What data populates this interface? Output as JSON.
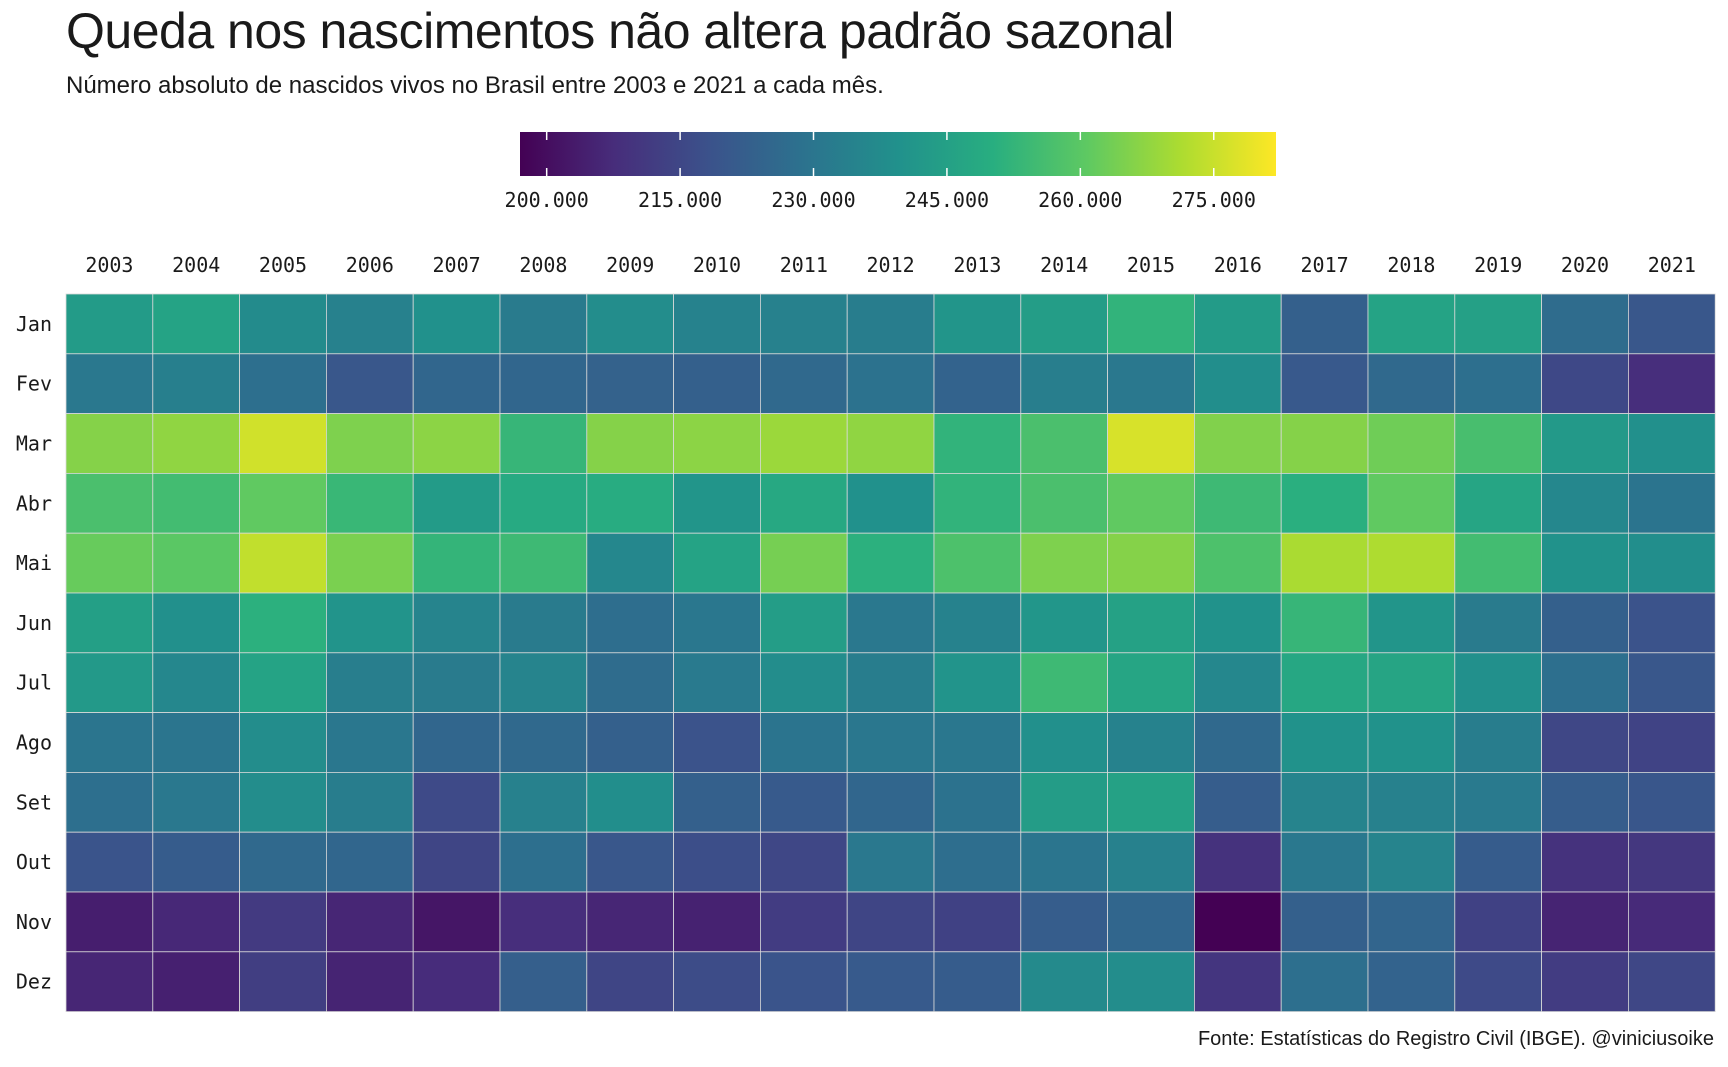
{
  "chart_data": {
    "type": "heatmap",
    "title": "Queda nos nascimentos não altera padrão sazonal",
    "subtitle": "Número absoluto de nascidos vivos no Brasil entre 2003 e 2021 a cada mês.",
    "caption": "Fonte: Estatísticas do Registro Civil (IBGE). @viniciusoike",
    "colorscale": "viridis",
    "legend": {
      "position": "top",
      "range": [
        197000,
        282000
      ],
      "tick_values": [
        200000,
        215000,
        230000,
        245000,
        260000,
        275000
      ],
      "tick_labels": [
        "200.000",
        "215.000",
        "230.000",
        "245.000",
        "260.000",
        "275.000"
      ]
    },
    "grid": true,
    "x": [
      "2003",
      "2004",
      "2005",
      "2006",
      "2007",
      "2008",
      "2009",
      "2010",
      "2011",
      "2012",
      "2013",
      "2014",
      "2015",
      "2016",
      "2017",
      "2018",
      "2019",
      "2020",
      "2021"
    ],
    "y": [
      "Jan",
      "Fev",
      "Mar",
      "Abr",
      "Mai",
      "Jun",
      "Jul",
      "Ago",
      "Set",
      "Out",
      "Nov",
      "Dez"
    ],
    "values": [
      [
        243000,
        246000,
        237500,
        234000,
        239500,
        232000,
        238000,
        234500,
        234000,
        232500,
        241000,
        244000,
        252000,
        243000,
        223000,
        246000,
        245000,
        227000,
        220000
      ],
      [
        231000,
        233500,
        228000,
        220000,
        225000,
        225000,
        223500,
        223000,
        226000,
        229000,
        224000,
        233000,
        231000,
        238500,
        220500,
        226000,
        228000,
        215500,
        208000
      ],
      [
        266000,
        267500,
        276000,
        265000,
        267000,
        253000,
        266000,
        267000,
        269000,
        267500,
        252000,
        257000,
        277000,
        265500,
        266000,
        263000,
        256500,
        242500,
        239000
      ],
      [
        257000,
        255500,
        261000,
        253500,
        243000,
        248500,
        249500,
        241000,
        248000,
        239500,
        252000,
        257000,
        261000,
        254500,
        250500,
        261000,
        247000,
        236000,
        229500
      ],
      [
        262000,
        260000,
        274000,
        264500,
        252500,
        254500,
        236000,
        246000,
        264000,
        251000,
        257500,
        265000,
        266000,
        257500,
        271000,
        271500,
        255500,
        240000,
        238500
      ],
      [
        244500,
        239000,
        251000,
        240500,
        235000,
        232000,
        227500,
        230500,
        244000,
        231000,
        234500,
        241500,
        245500,
        240000,
        253000,
        241000,
        232000,
        223000,
        218500
      ],
      [
        242500,
        236000,
        246000,
        233000,
        232000,
        235000,
        227000,
        231500,
        238000,
        232500,
        240500,
        254500,
        247000,
        236000,
        247500,
        246500,
        239000,
        228000,
        220000
      ],
      [
        230000,
        230000,
        238000,
        230500,
        225000,
        226000,
        223000,
        218500,
        229500,
        230500,
        230500,
        239000,
        234500,
        226000,
        240000,
        240000,
        232500,
        215000,
        214000
      ],
      [
        228000,
        231000,
        238000,
        232500,
        216000,
        234000,
        238500,
        223000,
        221000,
        225000,
        229000,
        243500,
        245500,
        222000,
        235000,
        234000,
        231500,
        222000,
        219500
      ],
      [
        219000,
        221500,
        226000,
        225000,
        214500,
        228000,
        220000,
        217000,
        215000,
        231000,
        227500,
        230000,
        234000,
        209000,
        231000,
        235000,
        221500,
        209000,
        210500
      ],
      [
        204000,
        206500,
        211500,
        206000,
        202000,
        208000,
        206000,
        205000,
        212000,
        214500,
        213500,
        222000,
        225000,
        197000,
        223000,
        224500,
        213500,
        205500,
        207000
      ],
      [
        206000,
        204500,
        212500,
        205500,
        207500,
        222500,
        214500,
        216500,
        219000,
        221000,
        221500,
        237000,
        238000,
        210000,
        228000,
        224000,
        216000,
        212000,
        215000
      ]
    ]
  }
}
